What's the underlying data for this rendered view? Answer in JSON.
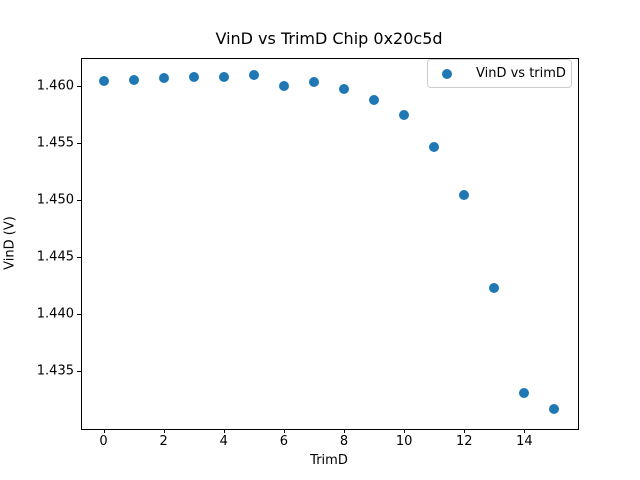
{
  "chart_data": {
    "type": "scatter",
    "title": "VinD vs TrimD Chip 0x20c5d",
    "xlabel": "TrimD",
    "ylabel": "VinD (V)",
    "legend": {
      "label": "VinD vs trimD",
      "position": "upper right"
    },
    "x": [
      0,
      1,
      2,
      3,
      4,
      5,
      6,
      7,
      8,
      9,
      10,
      11,
      12,
      13,
      14,
      15
    ],
    "y": [
      1.4605,
      1.4606,
      1.4607,
      1.4608,
      1.4608,
      1.461,
      1.46,
      1.4604,
      1.4598,
      1.4588,
      1.4575,
      1.4547,
      1.4505,
      1.4423,
      1.4331,
      1.4317
    ],
    "x_ticks": [
      0,
      2,
      4,
      6,
      8,
      10,
      12,
      14
    ],
    "y_ticks": [
      1.435,
      1.44,
      1.445,
      1.45,
      1.455,
      1.46
    ],
    "xlim": [
      -0.75,
      15.75
    ],
    "ylim": [
      1.43,
      1.4625
    ],
    "grid": false,
    "marker_color": "#1f77b4"
  }
}
